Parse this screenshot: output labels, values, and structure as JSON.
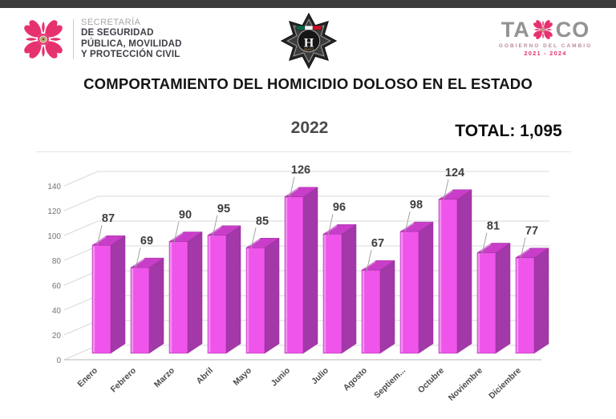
{
  "header": {
    "secretaria": {
      "line1": "SECRETARÍA",
      "line2": "DE SEGURIDAD",
      "line3": "PÚBLICA, MOVILIDAD",
      "line4": "Y PROTECCIÓN CIVIL"
    },
    "badge": {
      "center_letter": "H",
      "label": "TAXCO"
    },
    "taxco_logo": {
      "part1": "TA",
      "part2": "CO",
      "subtitle": "GOBIERNO DEL CAMBIO",
      "years": "2021 - 2024"
    }
  },
  "title": "COMPORTAMIENTO DEL HOMICIDIO DOLOSO EN EL ESTADO",
  "summary": {
    "year": "2022",
    "total": "TOTAL: 1,095"
  },
  "icons": {
    "left": "flower-logo-icon",
    "center": "police-star-badge-icon",
    "right": "flower-x-icon"
  },
  "chart_data": {
    "type": "bar",
    "style": "3d-column",
    "title": "2022",
    "categories": [
      "Enero",
      "Febrero",
      "Marzo",
      "Abril",
      "Mayo",
      "Junio",
      "Julio",
      "Agosto",
      "Septiem...",
      "Octubre",
      "Noviembre",
      "Diciembre"
    ],
    "values": [
      87,
      69,
      90,
      95,
      85,
      126,
      96,
      67,
      98,
      124,
      81,
      77
    ],
    "total": 1095,
    "xlabel": "",
    "ylabel": "",
    "ylim": [
      0,
      140
    ],
    "ytick_step": 20,
    "grid": true,
    "legend": "none",
    "colors": {
      "bar_front": "#EF55EA",
      "bar_top": "#C93EC9",
      "bar_side": "#A338A8",
      "bar_edge": "#992D9B",
      "grid_line": "#D9D9D9",
      "base_line": "#C4C4C4",
      "axis_text": "#737373",
      "data_label": "#3D3D3D",
      "month_label": "#4D4D4D",
      "leader_line": "#9A9A9A"
    }
  }
}
